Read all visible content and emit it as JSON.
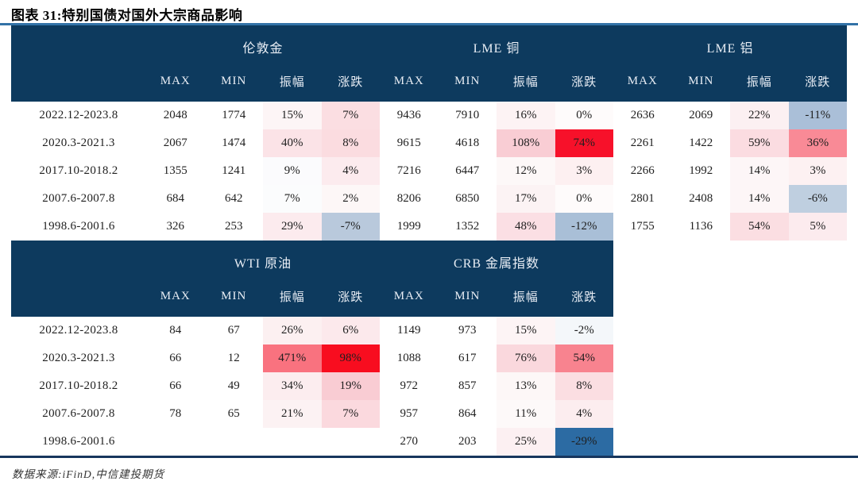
{
  "title": "图表 31:特别国债对国外大宗商品影响",
  "source_note": "数据来源:iFinD,中信建投期货",
  "colors": {
    "header_bg": "#0d3a5e",
    "header_text": "#e9eef5",
    "top_rule": "#3272a7",
    "bottom_rule": "#17365d",
    "body_text": "#1f1f1f",
    "strong_red": "#f7112a",
    "strong_blue": "#2c6ba3"
  },
  "chart_data": {
    "type": "table",
    "title": "图表 31:特别国债对国外大宗商品影响",
    "source": "数据来源:iFinD,中信建投期货",
    "sub_headers": [
      "MAX",
      "MIN",
      "振幅",
      "涨跌"
    ],
    "tables": [
      {
        "groups": [
          "伦敦金",
          "LME 铜",
          "LME 铝"
        ],
        "rows": [
          {
            "period": "2022.12-2023.8",
            "cells": [
              {
                "max": "2048",
                "min": "1774",
                "amp": "15%",
                "chg": "7%",
                "amp_bg": "#fdf5f6",
                "chg_bg": "#fbdee2"
              },
              {
                "max": "9436",
                "min": "7910",
                "amp": "16%",
                "chg": "0%",
                "amp_bg": "#fdf3f4",
                "chg_bg": "#fefbfb"
              },
              {
                "max": "2636",
                "min": "2069",
                "amp": "22%",
                "chg": "-11%",
                "amp_bg": "#fcf0f2",
                "chg_bg": "#aabfd8"
              }
            ]
          },
          {
            "period": "2020.3-2021.3",
            "cells": [
              {
                "max": "2067",
                "min": "1474",
                "amp": "40%",
                "chg": "8%",
                "amp_bg": "#fbe3e7",
                "chg_bg": "#fbdce0"
              },
              {
                "max": "9615",
                "min": "4618",
                "amp": "108%",
                "chg": "74%",
                "amp_bg": "#f9cdd4",
                "chg_bg": "#f7112a"
              },
              {
                "max": "2261",
                "min": "1422",
                "amp": "59%",
                "chg": "36%",
                "amp_bg": "#fbdce1",
                "chg_bg": "#f98a96"
              }
            ]
          },
          {
            "period": "2017.10-2018.2",
            "cells": [
              {
                "max": "1355",
                "min": "1241",
                "amp": "9%",
                "chg": "4%",
                "amp_bg": "#fbfbfd",
                "chg_bg": "#fcebee"
              },
              {
                "max": "7216",
                "min": "6447",
                "amp": "12%",
                "chg": "3%",
                "amp_bg": "#fdf8f8",
                "chg_bg": "#fdf0f1"
              },
              {
                "max": "2266",
                "min": "1992",
                "amp": "14%",
                "chg": "3%",
                "amp_bg": "#fdf6f7",
                "chg_bg": "#fdf1f2"
              }
            ]
          },
          {
            "period": "2007.6-2007.8",
            "cells": [
              {
                "max": "684",
                "min": "642",
                "amp": "7%",
                "chg": "2%",
                "amp_bg": "#fbfcfd",
                "chg_bg": "#fdf7f7"
              },
              {
                "max": "8206",
                "min": "6850",
                "amp": "17%",
                "chg": "0%",
                "amp_bg": "#fcf3f4",
                "chg_bg": "#fefbfb"
              },
              {
                "max": "2801",
                "min": "2408",
                "amp": "14%",
                "chg": "-6%",
                "amp_bg": "#fdf6f7",
                "chg_bg": "#bfcfe0"
              }
            ]
          },
          {
            "period": "1998.6-2001.6",
            "cells": [
              {
                "max": "326",
                "min": "253",
                "amp": "29%",
                "chg": "-7%",
                "amp_bg": "#fcebee",
                "chg_bg": "#b9c9dc"
              },
              {
                "max": "1999",
                "min": "1352",
                "amp": "48%",
                "chg": "-12%",
                "amp_bg": "#fbdfe4",
                "chg_bg": "#a9bfd7"
              },
              {
                "max": "1755",
                "min": "1136",
                "amp": "54%",
                "chg": "5%",
                "amp_bg": "#fbdee2",
                "chg_bg": "#fcebee"
              }
            ]
          }
        ]
      },
      {
        "groups": [
          "WTI 原油",
          "CRB 金属指数"
        ],
        "rows": [
          {
            "period": "2022.12-2023.8",
            "cells": [
              {
                "max": "84",
                "min": "67",
                "amp": "26%",
                "chg": "6%",
                "amp_bg": "#fcf0f1",
                "chg_bg": "#fce9ec"
              },
              {
                "max": "1149",
                "min": "973",
                "amp": "15%",
                "chg": "-2%",
                "amp_bg": "#fdf4f5",
                "chg_bg": "#f4f7fa"
              }
            ]
          },
          {
            "period": "2020.3-2021.3",
            "cells": [
              {
                "max": "66",
                "min": "12",
                "amp": "471%",
                "chg": "98%",
                "amp_bg": "#f9727f",
                "chg_bg": "#f80d1f"
              },
              {
                "max": "1088",
                "min": "617",
                "amp": "76%",
                "chg": "54%",
                "amp_bg": "#fad8dd",
                "chg_bg": "#f8838f"
              }
            ]
          },
          {
            "period": "2017.10-2018.2",
            "cells": [
              {
                "max": "66",
                "min": "49",
                "amp": "34%",
                "chg": "19%",
                "amp_bg": "#fcedef",
                "chg_bg": "#f9ccd3"
              },
              {
                "max": "972",
                "min": "857",
                "amp": "13%",
                "chg": "8%",
                "amp_bg": "#fdf7f7",
                "chg_bg": "#fbdee2"
              }
            ]
          },
          {
            "period": "2007.6-2007.8",
            "cells": [
              {
                "max": "78",
                "min": "65",
                "amp": "21%",
                "chg": "7%",
                "amp_bg": "#fcf2f3",
                "chg_bg": "#fbd9de"
              },
              {
                "max": "957",
                "min": "864",
                "amp": "11%",
                "chg": "4%",
                "amp_bg": "#fdf9f9",
                "chg_bg": "#fcedef"
              }
            ]
          },
          {
            "period": "1998.6-2001.6",
            "cells": [
              {
                "max": "",
                "min": "",
                "amp": "",
                "chg": "",
                "amp_bg": "#ffffff",
                "chg_bg": "#ffffff"
              },
              {
                "max": "270",
                "min": "203",
                "amp": "25%",
                "chg": "-29%",
                "amp_bg": "#fcf0f2",
                "chg_bg": "#2c6ba3"
              }
            ]
          }
        ]
      }
    ]
  }
}
